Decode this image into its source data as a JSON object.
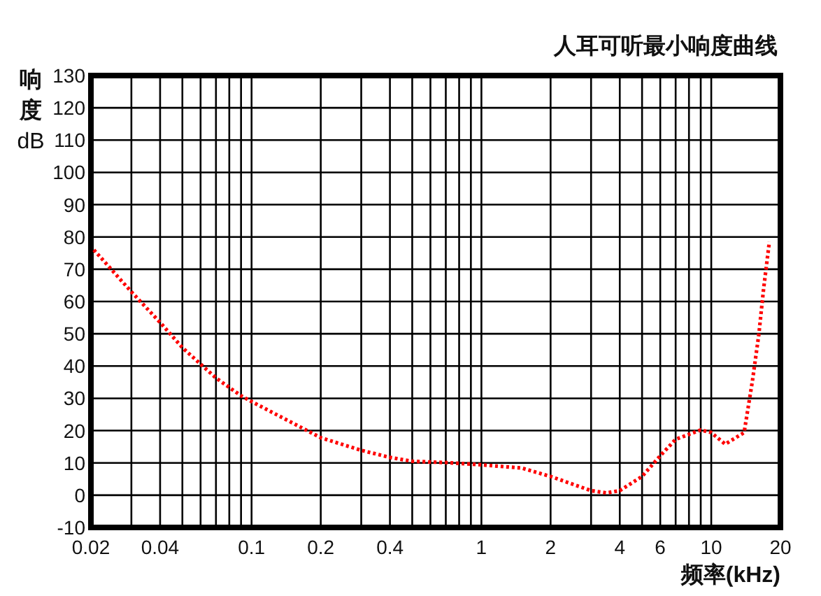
{
  "chart_data": {
    "type": "line",
    "title": "人耳可听最小响度曲线",
    "xlabel": "频率(kHz)",
    "ylabel": "响度dB",
    "log": "x",
    "grid": true,
    "marker": "none",
    "line_style": "dotted",
    "xlim": [
      0.02,
      20
    ],
    "ylim": [
      -10,
      130
    ],
    "xticks": [
      {
        "value": 0.02,
        "label": "0.02"
      },
      {
        "value": 0.03,
        "label": null
      },
      {
        "value": 0.04,
        "label": "0.04"
      },
      {
        "value": 0.05,
        "label": null
      },
      {
        "value": 0.06,
        "label": null
      },
      {
        "value": 0.07,
        "label": null
      },
      {
        "value": 0.08,
        "label": null
      },
      {
        "value": 0.09,
        "label": null
      },
      {
        "value": 0.1,
        "label": "0.1"
      },
      {
        "value": 0.2,
        "label": "0.2"
      },
      {
        "value": 0.3,
        "label": null
      },
      {
        "value": 0.4,
        "label": "0.4"
      },
      {
        "value": 0.5,
        "label": null
      },
      {
        "value": 0.6,
        "label": null
      },
      {
        "value": 0.7,
        "label": null
      },
      {
        "value": 0.8,
        "label": null
      },
      {
        "value": 0.9,
        "label": null
      },
      {
        "value": 1,
        "label": "1"
      },
      {
        "value": 2,
        "label": "2"
      },
      {
        "value": 3,
        "label": null
      },
      {
        "value": 4,
        "label": "4"
      },
      {
        "value": 5,
        "label": null
      },
      {
        "value": 6,
        "label": "6"
      },
      {
        "value": 7,
        "label": null
      },
      {
        "value": 8,
        "label": null
      },
      {
        "value": 9,
        "label": null
      },
      {
        "value": 10,
        "label": "10"
      },
      {
        "value": 20,
        "label": "20"
      }
    ],
    "yticks": [
      -10,
      0,
      10,
      20,
      30,
      40,
      50,
      60,
      70,
      80,
      90,
      100,
      110,
      120,
      130
    ],
    "series": [
      {
        "color": "#ff0000",
        "x": [
          0.0206,
          0.03,
          0.04,
          0.05,
          0.06,
          0.07,
          0.09,
          0.1,
          0.2,
          0.3,
          0.4,
          0.5,
          0.7,
          1,
          1.5,
          2,
          3,
          3.5,
          4,
          5,
          6,
          7,
          9,
          10,
          11.5,
          13.9,
          15.1,
          16.1,
          16.9,
          17.9
        ],
        "values": [
          76,
          63,
          53.5,
          45.7,
          40.6,
          36.3,
          30.8,
          29,
          17.8,
          13.9,
          11.7,
          10.5,
          10.1,
          9.4,
          8.4,
          5.8,
          1.4,
          0.7,
          1.4,
          5.8,
          12.2,
          17.3,
          20.2,
          19.4,
          15.8,
          19.4,
          35.3,
          49.7,
          64,
          78.5
        ]
      }
    ]
  }
}
